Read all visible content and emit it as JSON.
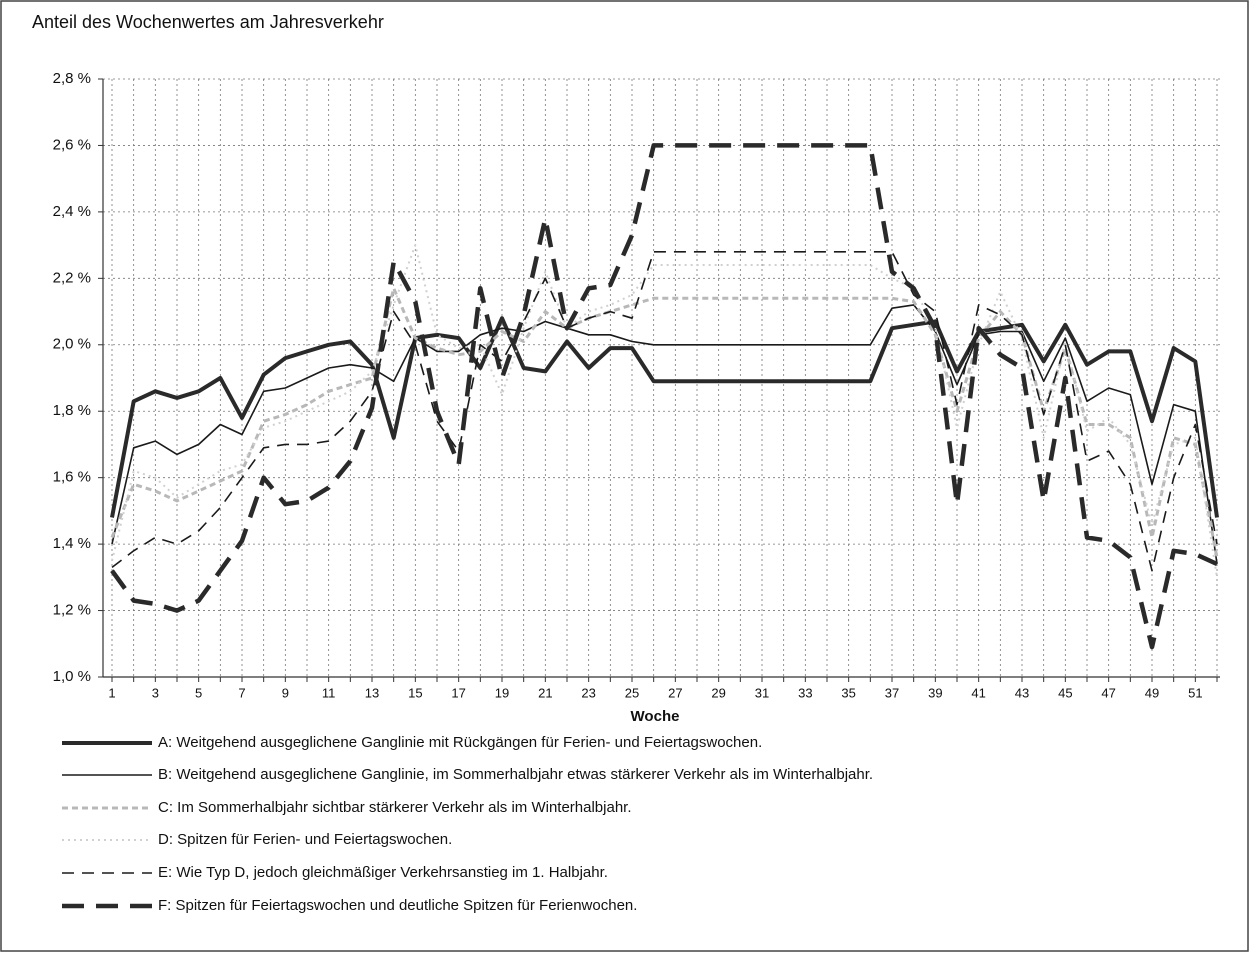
{
  "chart_data": {
    "type": "line",
    "title": "Anteil des Wochenwertes am Jahresverkehr",
    "x_label": "Woche",
    "categories": [
      1,
      null,
      3,
      null,
      5,
      null,
      7,
      null,
      9,
      null,
      11,
      null,
      13,
      null,
      15,
      null,
      17,
      null,
      19,
      null,
      21,
      null,
      23,
      null,
      25,
      null,
      27,
      null,
      29,
      null,
      31,
      null,
      33,
      null,
      35,
      null,
      37,
      null,
      39,
      null,
      41,
      null,
      43,
      null,
      45,
      null,
      47,
      null,
      49,
      null,
      51,
      null
    ],
    "ylim": [
      1.0,
      2.8
    ],
    "yticks": [
      {
        "value": 1.0,
        "label": "1,0 %"
      },
      {
        "value": 1.2,
        "label": "1,2 %"
      },
      {
        "value": 1.4,
        "label": "1,4 %"
      },
      {
        "value": 1.6,
        "label": "1,6 %"
      },
      {
        "value": 1.8,
        "label": "1,8 %"
      },
      {
        "value": 2.0,
        "label": "2,0 %"
      },
      {
        "value": 2.2,
        "label": "2,2 %"
      },
      {
        "value": 2.4,
        "label": "2,4 %"
      },
      {
        "value": 2.6,
        "label": "2,6 %"
      },
      {
        "value": 2.8,
        "label": "2,8 %"
      }
    ],
    "grid": true,
    "series": [
      {
        "name": "A: Weitgehend ausgeglichene Ganglinie mit Rückgängen für Ferien- und Feiertagswochen.",
        "color": "#2a2a2a",
        "values": [
          1.48,
          1.83,
          1.86,
          1.84,
          1.86,
          1.9,
          1.78,
          1.91,
          1.96,
          1.98,
          2.0,
          2.01,
          1.94,
          1.72,
          2.02,
          2.03,
          2.02,
          1.93,
          2.08,
          1.93,
          1.92,
          2.01,
          1.93,
          1.99,
          1.99,
          1.89,
          1.89,
          1.89,
          1.89,
          1.89,
          1.89,
          1.89,
          1.89,
          1.89,
          1.89,
          1.89,
          2.05,
          2.06,
          2.07,
          1.92,
          2.04,
          2.05,
          2.06,
          1.95,
          2.06,
          1.94,
          1.98,
          1.98,
          1.77,
          1.99,
          1.95,
          1.48
        ]
      },
      {
        "name": "B: Weitgehend ausgeglichene Ganglinie, im Sommerhalbjahr etwas stärkerer Verkehr als im Winterhalbjahr.",
        "color": "#1a1a1a",
        "values": [
          1.4,
          1.69,
          1.71,
          1.67,
          1.7,
          1.76,
          1.73,
          1.86,
          1.87,
          1.9,
          1.93,
          1.94,
          1.93,
          1.89,
          2.02,
          1.98,
          1.98,
          2.03,
          2.05,
          2.04,
          2.07,
          2.05,
          2.03,
          2.03,
          2.01,
          2.0,
          2.0,
          2.0,
          2.0,
          2.0,
          2.0,
          2.0,
          2.0,
          2.0,
          2.0,
          2.0,
          2.11,
          2.12,
          2.04,
          1.88,
          2.03,
          2.04,
          2.04,
          1.89,
          2.02,
          1.83,
          1.87,
          1.85,
          1.58,
          1.82,
          1.8,
          1.34
        ]
      },
      {
        "name": "C: Im Sommerhalbjahr sichtbar stärkerer Verkehr als im Winterhalbjahr.",
        "color": "#b8b8b8",
        "values": [
          1.42,
          1.58,
          1.56,
          1.53,
          1.56,
          1.59,
          1.62,
          1.77,
          1.79,
          1.82,
          1.86,
          1.88,
          1.9,
          2.17,
          2.02,
          1.99,
          1.97,
          1.98,
          2.04,
          2.01,
          2.1,
          2.05,
          2.08,
          2.1,
          2.12,
          2.14,
          2.14,
          2.14,
          2.14,
          2.14,
          2.14,
          2.14,
          2.14,
          2.14,
          2.14,
          2.14,
          2.14,
          2.13,
          2.03,
          1.8,
          2.02,
          2.1,
          2.03,
          1.8,
          1.99,
          1.76,
          1.76,
          1.72,
          1.42,
          1.72,
          1.7,
          1.36
        ]
      },
      {
        "name": "D: Spitzen für Ferien- und Feiertagswochen.",
        "color": "#d0d0d0",
        "values": [
          1.35,
          1.62,
          1.6,
          1.54,
          1.58,
          1.62,
          1.64,
          1.75,
          1.77,
          1.8,
          1.83,
          1.86,
          1.92,
          2.12,
          2.3,
          2.03,
          1.99,
          2.0,
          1.85,
          2.05,
          2.22,
          2.05,
          2.1,
          2.12,
          2.15,
          2.24,
          2.24,
          2.24,
          2.24,
          2.24,
          2.24,
          2.24,
          2.24,
          2.24,
          2.24,
          2.24,
          2.2,
          2.17,
          2.05,
          1.75,
          2.0,
          2.16,
          2.02,
          1.72,
          2.01,
          1.74,
          1.78,
          1.7,
          1.46,
          1.7,
          1.72,
          1.3
        ]
      },
      {
        "name": "E: Wie Typ D, jedoch gleichmäßiger Verkehrsanstieg im 1. Halbjahr.",
        "color": "#1a1a1a",
        "values": [
          1.33,
          1.38,
          1.42,
          1.4,
          1.44,
          1.51,
          1.6,
          1.69,
          1.7,
          1.7,
          1.71,
          1.77,
          1.86,
          2.1,
          2.0,
          1.77,
          1.68,
          2.0,
          1.95,
          2.07,
          2.2,
          2.05,
          2.08,
          2.1,
          2.08,
          2.28,
          2.28,
          2.28,
          2.28,
          2.28,
          2.28,
          2.28,
          2.28,
          2.28,
          2.28,
          2.28,
          2.28,
          2.15,
          2.1,
          1.82,
          2.12,
          2.09,
          2.03,
          1.79,
          2.0,
          1.65,
          1.68,
          1.58,
          1.32,
          1.6,
          1.76,
          1.4
        ]
      },
      {
        "name": "F: Spitzen für  Feiertagswochen und deutliche Spitzen für Ferienwochen.",
        "color": "#2a2a2a",
        "values": [
          1.32,
          1.23,
          1.22,
          1.2,
          1.23,
          1.32,
          1.41,
          1.6,
          1.52,
          1.53,
          1.57,
          1.65,
          1.81,
          2.25,
          2.13,
          1.8,
          1.64,
          2.17,
          1.9,
          2.09,
          2.38,
          2.05,
          2.17,
          2.18,
          2.33,
          2.6,
          2.6,
          2.6,
          2.6,
          2.6,
          2.6,
          2.6,
          2.6,
          2.6,
          2.6,
          2.6,
          2.22,
          2.17,
          2.05,
          1.52,
          2.05,
          1.97,
          1.93,
          1.53,
          1.9,
          1.42,
          1.41,
          1.36,
          1.09,
          1.38,
          1.37,
          1.34
        ]
      }
    ]
  }
}
